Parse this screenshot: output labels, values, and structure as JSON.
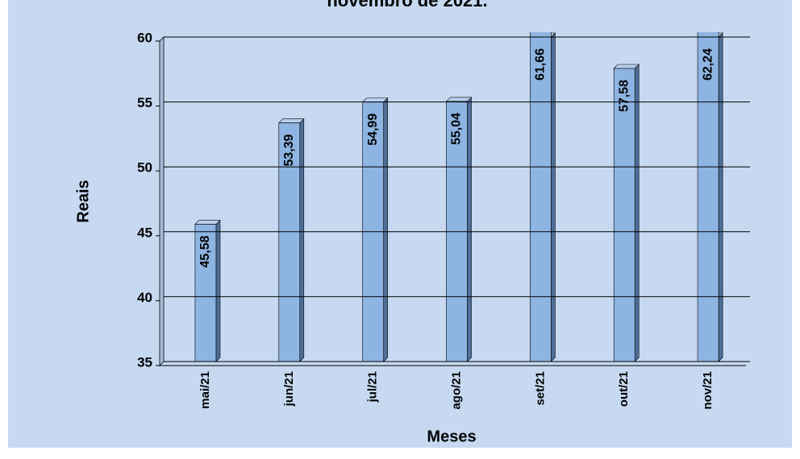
{
  "chart_data": {
    "type": "bar",
    "title": "novembro de 2021.",
    "x_label": "Meses",
    "y_label": "Reais",
    "categories": [
      "mai/21",
      "jun/21",
      "jul/21",
      "ago/21",
      "set/21",
      "out/21",
      "nov/21"
    ],
    "values": [
      45.58,
      53.39,
      54.99,
      55.04,
      61.66,
      57.58,
      62.24
    ],
    "value_labels": [
      "45,58",
      "53,39",
      "54,99",
      "55,04",
      "61,66",
      "57,58",
      "62,24"
    ],
    "color": "#8db4e2",
    "ylim": [
      35,
      60
    ],
    "yticks": [
      35,
      40,
      45,
      50,
      55,
      60
    ],
    "grid": true
  }
}
